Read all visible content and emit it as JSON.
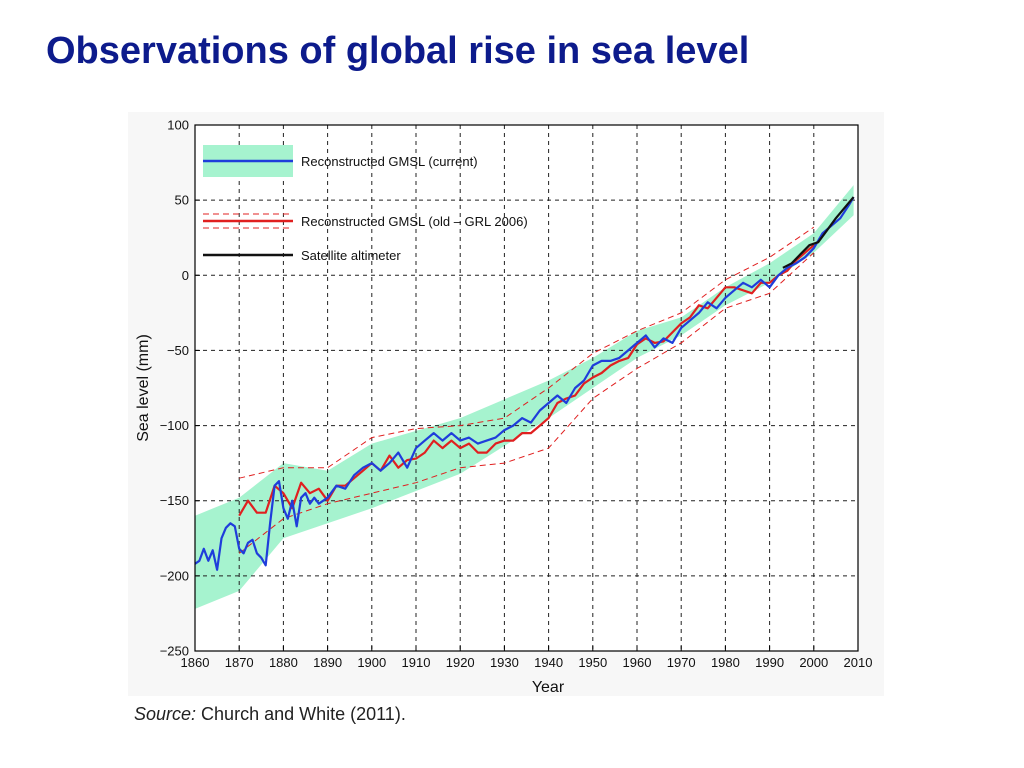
{
  "slide": {
    "title": "Observations of global rise in sea level"
  },
  "source": {
    "label": "Source:",
    "text": " Church and White (2011)."
  },
  "colors": {
    "title": "#0d1b8c",
    "current": "#1f3ddb",
    "old": "#e02020",
    "satellite": "#111111",
    "band": "#a6f3cf"
  },
  "chart_data": {
    "type": "line",
    "xlabel": "Year",
    "ylabel": "Sea level (mm)",
    "xlim": [
      1860,
      2010
    ],
    "ylim": [
      -250,
      100
    ],
    "xticks": [
      1860,
      1870,
      1880,
      1890,
      1900,
      1910,
      1920,
      1930,
      1940,
      1950,
      1960,
      1970,
      1980,
      1990,
      2000,
      2010
    ],
    "yticks": [
      100,
      50,
      0,
      -50,
      -100,
      -150,
      -200,
      -250
    ],
    "ytick_labels": [
      "100",
      "50",
      "0",
      "−50",
      "−100",
      "−150",
      "−200",
      "−250"
    ],
    "grid": true,
    "legend_position": "top-left",
    "series": [
      {
        "name": "Reconstructed GMSL (current)",
        "x": [
          1860,
          1861,
          1862,
          1863,
          1864,
          1865,
          1866,
          1867,
          1868,
          1869,
          1870,
          1871,
          1872,
          1873,
          1874,
          1875,
          1876,
          1877,
          1878,
          1879,
          1880,
          1881,
          1882,
          1883,
          1884,
          1885,
          1886,
          1887,
          1888,
          1889,
          1890,
          1892,
          1894,
          1896,
          1898,
          1900,
          1902,
          1904,
          1906,
          1908,
          1910,
          1912,
          1914,
          1916,
          1918,
          1920,
          1922,
          1924,
          1926,
          1928,
          1930,
          1932,
          1934,
          1936,
          1938,
          1940,
          1942,
          1944,
          1946,
          1948,
          1950,
          1952,
          1954,
          1956,
          1958,
          1960,
          1962,
          1964,
          1966,
          1968,
          1970,
          1972,
          1974,
          1976,
          1978,
          1980,
          1982,
          1984,
          1986,
          1988,
          1990,
          1992,
          1994,
          1996,
          1998,
          2000,
          2002,
          2004,
          2006,
          2008,
          2009
        ],
        "y": [
          -192,
          -190,
          -182,
          -190,
          -183,
          -196,
          -175,
          -168,
          -165,
          -167,
          -182,
          -185,
          -178,
          -176,
          -185,
          -188,
          -193,
          -165,
          -140,
          -137,
          -155,
          -162,
          -150,
          -167,
          -148,
          -145,
          -152,
          -148,
          -152,
          -150,
          -148,
          -140,
          -142,
          -133,
          -128,
          -125,
          -130,
          -125,
          -118,
          -128,
          -115,
          -110,
          -105,
          -110,
          -105,
          -110,
          -108,
          -112,
          -110,
          -108,
          -103,
          -100,
          -95,
          -98,
          -90,
          -85,
          -80,
          -85,
          -75,
          -70,
          -60,
          -57,
          -57,
          -55,
          -50,
          -45,
          -40,
          -48,
          -42,
          -45,
          -35,
          -30,
          -25,
          -18,
          -22,
          -15,
          -10,
          -5,
          -8,
          -3,
          -8,
          0,
          5,
          8,
          12,
          18,
          28,
          33,
          38,
          47,
          52
        ]
      },
      {
        "name": "Reconstructed GMSL (old – GRL 2006)",
        "x": [
          1870,
          1872,
          1874,
          1876,
          1878,
          1880,
          1882,
          1884,
          1886,
          1888,
          1890,
          1892,
          1894,
          1896,
          1898,
          1900,
          1902,
          1904,
          1906,
          1908,
          1910,
          1912,
          1914,
          1916,
          1918,
          1920,
          1922,
          1924,
          1926,
          1928,
          1930,
          1932,
          1934,
          1936,
          1938,
          1940,
          1942,
          1944,
          1946,
          1948,
          1950,
          1952,
          1954,
          1956,
          1958,
          1960,
          1962,
          1964,
          1966,
          1968,
          1970,
          1972,
          1974,
          1976,
          1978,
          1980,
          1982,
          1984,
          1986,
          1988,
          1990,
          1992,
          1994,
          1996,
          1998,
          2000
        ],
        "y": [
          -160,
          -150,
          -158,
          -158,
          -140,
          -145,
          -155,
          -138,
          -145,
          -142,
          -150,
          -140,
          -140,
          -135,
          -130,
          -125,
          -130,
          -120,
          -128,
          -123,
          -122,
          -118,
          -110,
          -115,
          -110,
          -115,
          -112,
          -118,
          -118,
          -112,
          -110,
          -110,
          -105,
          -105,
          -100,
          -95,
          -85,
          -82,
          -80,
          -72,
          -68,
          -65,
          -60,
          -57,
          -55,
          -46,
          -42,
          -45,
          -44,
          -38,
          -32,
          -28,
          -20,
          -22,
          -15,
          -8,
          -8,
          -10,
          -12,
          -5,
          -5,
          0,
          3,
          10,
          15,
          20
        ]
      },
      {
        "name": "Satellite altimeter",
        "x": [
          1993,
          1995,
          1997,
          1999,
          2001,
          2003,
          2005,
          2007,
          2009
        ],
        "y": [
          5,
          8,
          14,
          20,
          22,
          30,
          38,
          45,
          52
        ]
      }
    ],
    "uncertainty_band": {
      "x": [
        1860,
        1870,
        1880,
        1890,
        1900,
        1920,
        1940,
        1950,
        1960,
        1970,
        1980,
        1990,
        2000,
        2009
      ],
      "lower": [
        -222,
        -210,
        -175,
        -165,
        -155,
        -132,
        -95,
        -75,
        -55,
        -40,
        -20,
        -5,
        15,
        40
      ],
      "upper": [
        -160,
        -148,
        -125,
        -130,
        -112,
        -95,
        -70,
        -55,
        -37,
        -28,
        -8,
        8,
        28,
        60
      ]
    },
    "old_uncertainty": {
      "x": [
        1870,
        1880,
        1890,
        1900,
        1910,
        1920,
        1930,
        1940,
        1950,
        1960,
        1970,
        1980,
        1990,
        2000
      ],
      "lower": [
        -185,
        -162,
        -152,
        -145,
        -138,
        -128,
        -125,
        -115,
        -82,
        -62,
        -45,
        -22,
        -12,
        15
      ],
      "upper": [
        -135,
        -128,
        -128,
        -108,
        -102,
        -100,
        -95,
        -75,
        -52,
        -37,
        -25,
        -3,
        12,
        32
      ]
    }
  }
}
